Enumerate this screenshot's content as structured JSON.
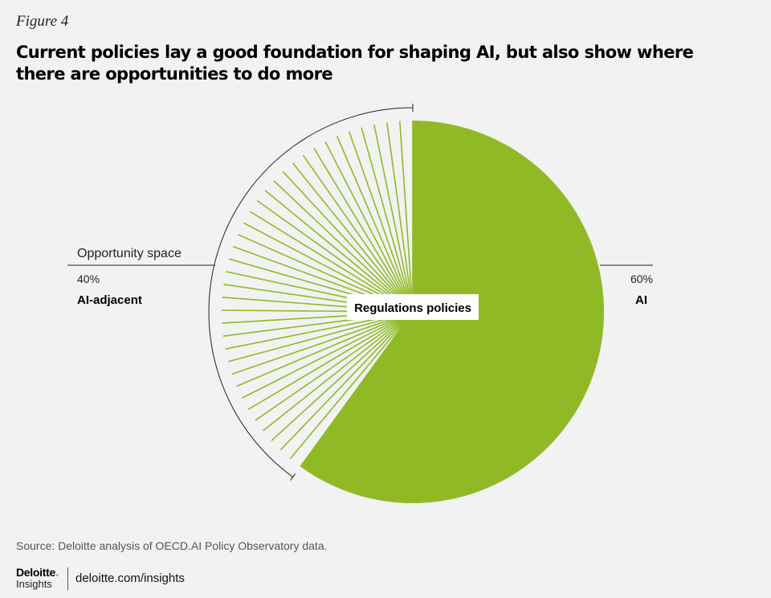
{
  "figure_label": "Figure 4",
  "title": "Current policies lay a good foundation for shaping AI, but also show where there are opportunities to do more",
  "source": "Source: Deloitte analysis of OECD.AI Policy Observatory data.",
  "footer": {
    "logo_word": "Deloitte",
    "logo_dot": ".",
    "logo_sub": "Insights",
    "url": "deloitte.com/insights"
  },
  "colors": {
    "ai": "#8fba26",
    "ai_adjacent": "#8fba26",
    "background": "#f2f2f2"
  },
  "chart_data": {
    "type": "pie",
    "title": "Current policies lay a good foundation for shaping AI, but also show where there are opportunities to do more",
    "center_label": "Regulations policies",
    "bracket_label": "Opportunity space",
    "slices": [
      {
        "name": "AI",
        "value": 60,
        "value_label": "60%",
        "style": "solid"
      },
      {
        "name": "AI-adjacent",
        "value": 40,
        "value_label": "40%",
        "style": "hatched"
      }
    ]
  }
}
